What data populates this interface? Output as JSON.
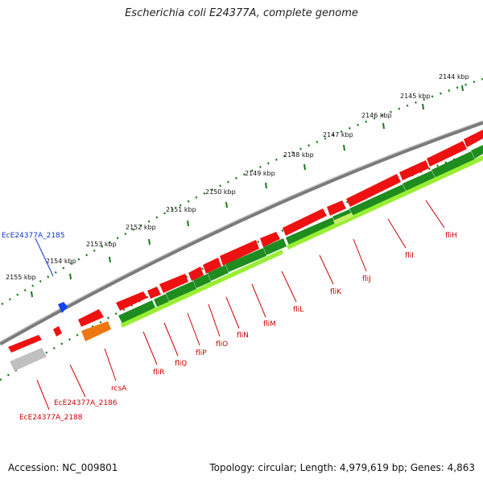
{
  "title": "Escherichia coli E24377A, complete genome",
  "footer": {
    "accession": "Accession: NC_009801",
    "summary": "Topology: circular; Length: 4,979,619 bp; Genes: 4,863"
  },
  "colors": {
    "backbone": "#808080",
    "tick_mark": "#1a7a1a",
    "gene_forward": "#ee1111",
    "gene_cds": "#1e8c1e",
    "gene_cds_light": "#99ee33",
    "gene_orange": "#ee7711",
    "gene_grey": "#c0c0c0",
    "gene_blue": "#1144ee",
    "label_red": "#cc0000",
    "label_blue": "#1133cc"
  },
  "ticks": [
    {
      "label": "2144 kbp"
    },
    {
      "label": "2145 kbp"
    },
    {
      "label": "2146 kbp"
    },
    {
      "label": "2147 kbp"
    },
    {
      "label": "2148 kbp"
    },
    {
      "label": "2149 kbp"
    },
    {
      "label": "2150 kbp"
    },
    {
      "label": "2151 kbp"
    },
    {
      "label": "2152 kbp"
    },
    {
      "label": "2153 kbp"
    },
    {
      "label": "2154 kbp"
    },
    {
      "label": "2155 kbp"
    }
  ],
  "genes": [
    {
      "name": "EcE24377A_2185",
      "color": "blue"
    },
    {
      "name": "EcE24377A_2186",
      "color": "red"
    },
    {
      "name": "EcE24377A_2188",
      "color": "red"
    },
    {
      "name": "rcsA",
      "color": "red"
    },
    {
      "name": "fliR",
      "color": "red"
    },
    {
      "name": "fliQ",
      "color": "red"
    },
    {
      "name": "fliP",
      "color": "red"
    },
    {
      "name": "fliO",
      "color": "red"
    },
    {
      "name": "fliN",
      "color": "red"
    },
    {
      "name": "fliM",
      "color": "red"
    },
    {
      "name": "fliL",
      "color": "red"
    },
    {
      "name": "fliK",
      "color": "red"
    },
    {
      "name": "fliJ",
      "color": "red"
    },
    {
      "name": "fliI",
      "color": "red"
    },
    {
      "name": "fliH",
      "color": "red"
    }
  ]
}
